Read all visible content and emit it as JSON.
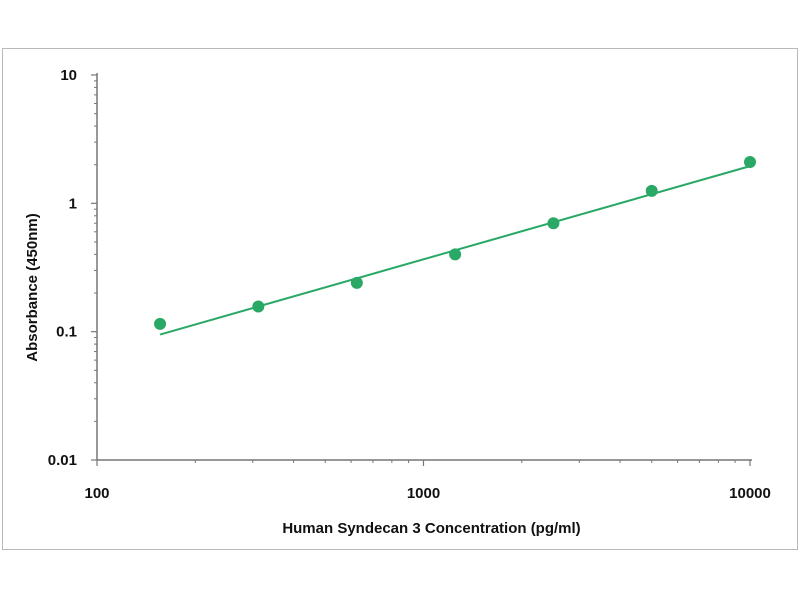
{
  "chart_data": {
    "type": "scatter",
    "title": "",
    "xlabel": "Human Syndecan 3 Concentration (pg/ml)",
    "ylabel": "Absorbance (450nm)",
    "x_scale": "log",
    "y_scale": "log",
    "xlim": [
      100,
      10000
    ],
    "ylim": [
      0.01,
      10
    ],
    "x_ticks": [
      "100",
      "1000",
      "10000"
    ],
    "y_ticks": [
      "0.01",
      "0.1",
      "1",
      "10"
    ],
    "grid": false,
    "legend": "none",
    "color": "#2aa866",
    "series": [
      {
        "points": [
          {
            "x": 156,
            "y": 0.115
          },
          {
            "x": 312,
            "y": 0.157
          },
          {
            "x": 625,
            "y": 0.24
          },
          {
            "x": 1250,
            "y": 0.4
          },
          {
            "x": 2500,
            "y": 0.7
          },
          {
            "x": 5000,
            "y": 1.25
          },
          {
            "x": 10000,
            "y": 2.1
          }
        ]
      }
    ],
    "fit_line": [
      {
        "x": 156,
        "y": 0.095
      },
      {
        "x": 10000,
        "y": 1.95
      }
    ]
  }
}
